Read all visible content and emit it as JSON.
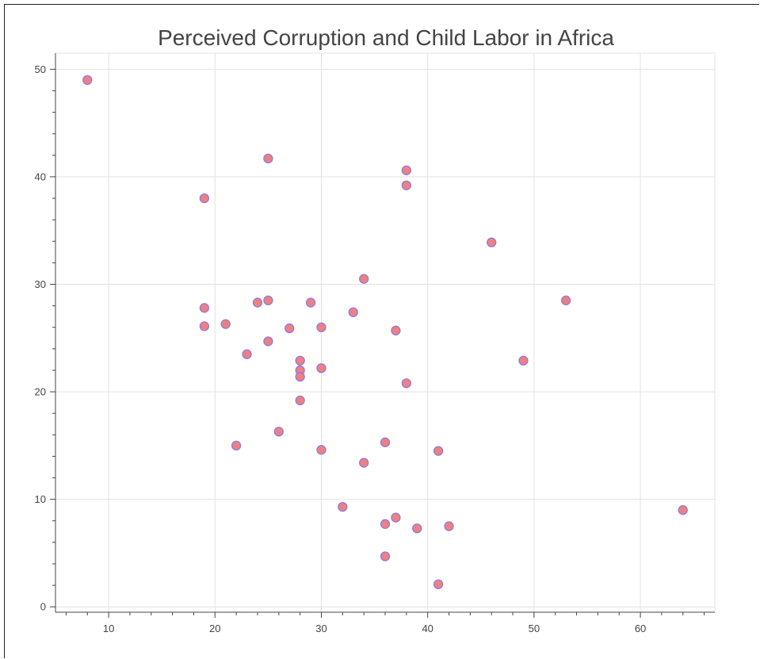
{
  "chart_data": {
    "type": "scatter",
    "title": "Perceived Corruption and Child Labor in Africa",
    "xlabel": "",
    "ylabel": "",
    "xlim": [
      5,
      67
    ],
    "ylim": [
      -0.5,
      51.5
    ],
    "x_ticks": [
      10,
      20,
      30,
      40,
      50,
      60
    ],
    "y_ticks": [
      0,
      10,
      20,
      30,
      40,
      50
    ],
    "x_tick_labels": [
      "10",
      "20",
      "30",
      "40",
      "50",
      "60"
    ],
    "y_tick_labels": [
      "0",
      "10",
      "20",
      "30",
      "40",
      "50"
    ],
    "grid": true,
    "legend": "none",
    "marker_fill": "#f08080",
    "marker_stroke": "#8a7be6",
    "points": [
      {
        "x": 8,
        "y": 49.0
      },
      {
        "x": 25,
        "y": 41.7
      },
      {
        "x": 38,
        "y": 40.6
      },
      {
        "x": 38,
        "y": 39.2
      },
      {
        "x": 19,
        "y": 38.0
      },
      {
        "x": 46,
        "y": 33.9
      },
      {
        "x": 34,
        "y": 30.5
      },
      {
        "x": 53,
        "y": 28.5
      },
      {
        "x": 25,
        "y": 28.5
      },
      {
        "x": 24,
        "y": 28.3
      },
      {
        "x": 29,
        "y": 28.3
      },
      {
        "x": 19,
        "y": 27.8
      },
      {
        "x": 33,
        "y": 27.4
      },
      {
        "x": 21,
        "y": 26.3
      },
      {
        "x": 19,
        "y": 26.1
      },
      {
        "x": 30,
        "y": 26.0
      },
      {
        "x": 27,
        "y": 25.9
      },
      {
        "x": 37,
        "y": 25.7
      },
      {
        "x": 25,
        "y": 24.7
      },
      {
        "x": 23,
        "y": 23.5
      },
      {
        "x": 28,
        "y": 22.9
      },
      {
        "x": 49,
        "y": 22.9
      },
      {
        "x": 30,
        "y": 22.2
      },
      {
        "x": 28,
        "y": 22.0
      },
      {
        "x": 28,
        "y": 21.4
      },
      {
        "x": 38,
        "y": 20.8
      },
      {
        "x": 28,
        "y": 19.2
      },
      {
        "x": 26,
        "y": 16.3
      },
      {
        "x": 36,
        "y": 15.3
      },
      {
        "x": 22,
        "y": 15.0
      },
      {
        "x": 30,
        "y": 14.6
      },
      {
        "x": 41,
        "y": 14.5
      },
      {
        "x": 34,
        "y": 13.4
      },
      {
        "x": 32,
        "y": 9.3
      },
      {
        "x": 64,
        "y": 9.0
      },
      {
        "x": 37,
        "y": 8.3
      },
      {
        "x": 36,
        "y": 7.7
      },
      {
        "x": 42,
        "y": 7.5
      },
      {
        "x": 39,
        "y": 7.3
      },
      {
        "x": 36,
        "y": 4.7
      },
      {
        "x": 41,
        "y": 2.1
      }
    ]
  }
}
